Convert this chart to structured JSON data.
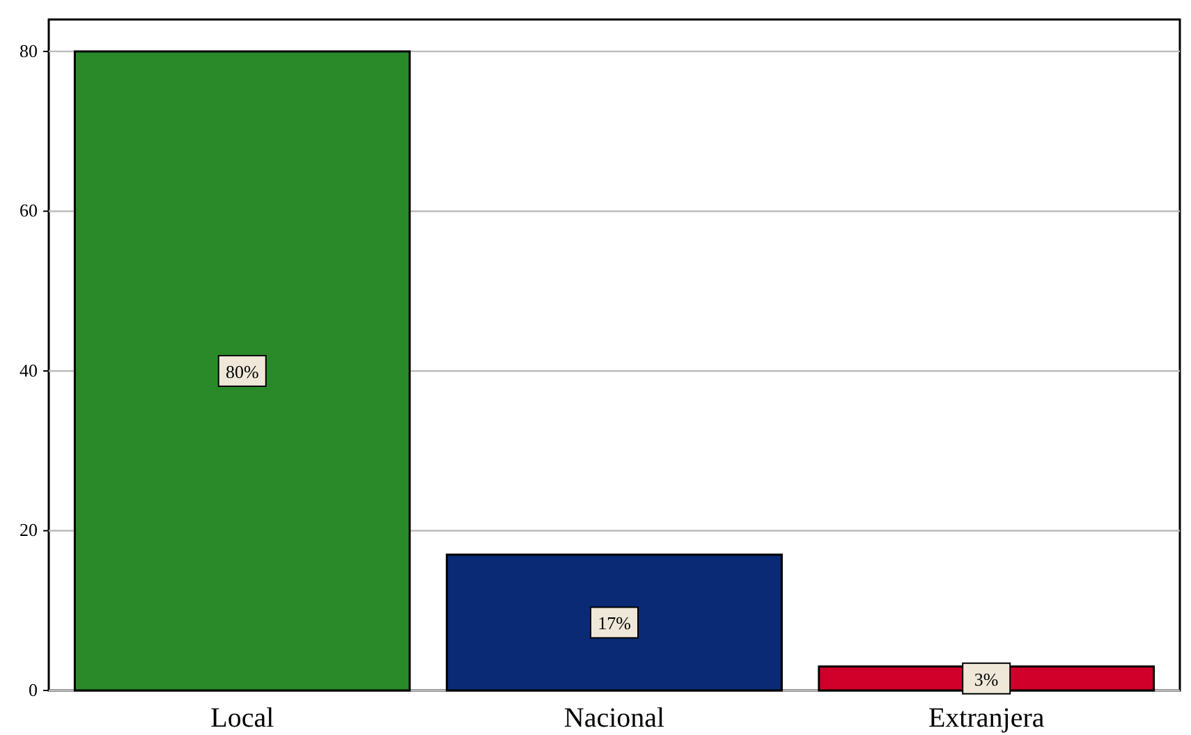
{
  "chart_data": {
    "type": "bar",
    "categories": [
      "Local",
      "Nacional",
      "Extranjera"
    ],
    "values": [
      80,
      17,
      3
    ],
    "colors": [
      "#2a8a2a",
      "#0a2a75",
      "#d0002a"
    ],
    "value_labels": [
      "80%",
      "17%",
      "3%"
    ],
    "ylim": [
      0,
      84
    ],
    "yticks": [
      0,
      20,
      40,
      60,
      80
    ],
    "grid": "y"
  }
}
